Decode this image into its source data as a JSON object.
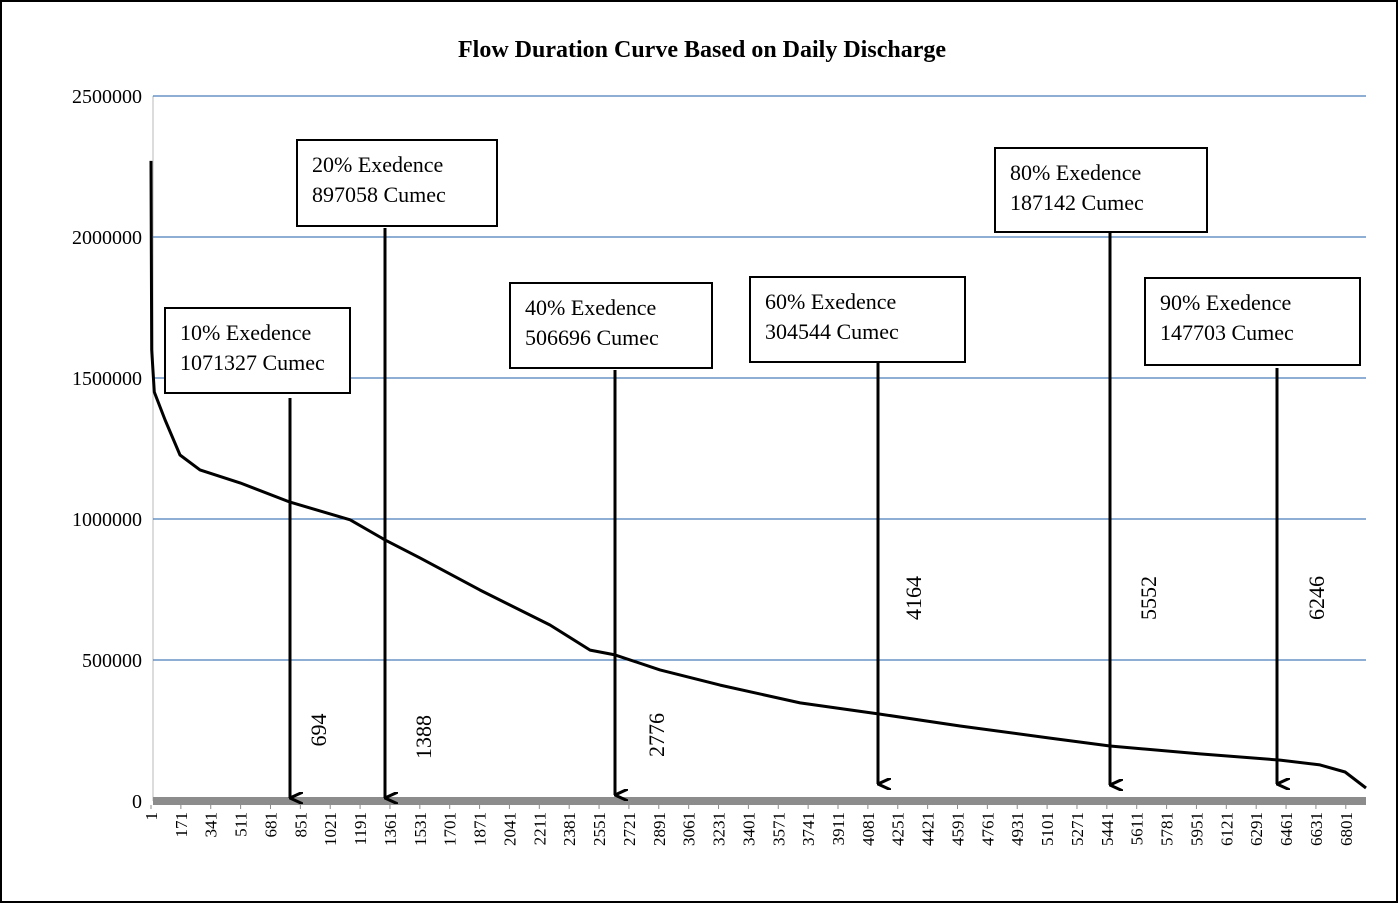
{
  "chart_data": {
    "type": "line",
    "title": "Flow Duration Curve Based on Daily Discharge",
    "x": [
      1,
      5,
      20,
      81,
      166,
      280,
      508,
      792,
      1134,
      1333,
      1532,
      1874,
      2272,
      2500,
      2642,
      2898,
      3240,
      3695,
      4150,
      4606,
      5118,
      5459,
      5971,
      6427,
      6654,
      6797,
      6916
    ],
    "values": [
      2270000,
      1600000,
      1450000,
      1351000,
      1227000,
      1174000,
      1128000,
      1060000,
      997000,
      926000,
      862000,
      748000,
      624000,
      535000,
      518000,
      465000,
      411000,
      348000,
      308000,
      266000,
      223000,
      195000,
      167000,
      145000,
      128000,
      103000,
      46000
    ],
    "color": "#000000",
    "xlim": [
      1,
      6916
    ],
    "xticks": [
      1,
      171,
      341,
      511,
      681,
      851,
      1021,
      1191,
      1361,
      1531,
      1701,
      1871,
      2041,
      2211,
      2381,
      2551,
      2721,
      2891,
      3061,
      3231,
      3401,
      3571,
      3741,
      3911,
      4081,
      4251,
      4421,
      4591,
      4761,
      4931,
      5101,
      5271,
      5441,
      5611,
      5781,
      5951,
      6121,
      6291,
      6461,
      6631,
      6801
    ],
    "ylim": [
      0,
      2500000
    ],
    "yticks": [
      0,
      500000,
      1000000,
      1500000,
      2000000,
      2500000
    ],
    "grid": true,
    "grid_color": "#4a7ebb",
    "annotations": [
      {
        "lines": [
          "10% Exedence",
          "1071327 Cumec"
        ],
        "x": 694
      },
      {
        "lines": [
          "20% Exedence",
          "897058 Cumec"
        ],
        "x": 1388
      },
      {
        "lines": [
          "40% Exedence",
          "506696 Cumec"
        ],
        "x": 2776
      },
      {
        "lines": [
          "60% Exedence",
          "304544 Cumec"
        ],
        "x": 4164
      },
      {
        "lines": [
          "80% Exedence",
          "187142 Cumec"
        ],
        "x": 5552
      },
      {
        "lines": [
          "90% Exedence",
          "147703 Cumec"
        ],
        "x": 6246
      }
    ]
  }
}
